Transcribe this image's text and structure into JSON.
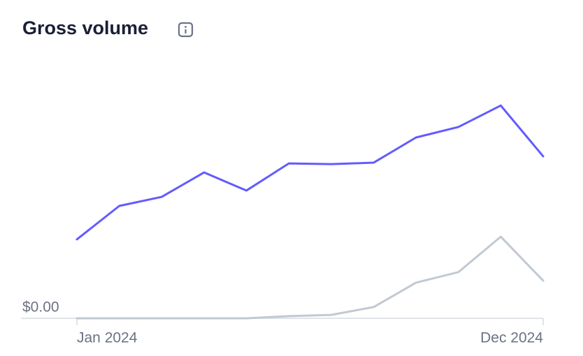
{
  "chart_data": {
    "type": "line",
    "title": "Gross volume",
    "categories": [
      "Jan 2024",
      null,
      null,
      null,
      null,
      null,
      null,
      null,
      null,
      null,
      null,
      "Dec 2024"
    ],
    "series": [
      {
        "color": "#635bff",
        "values": [
          32.3,
          46,
          49.7,
          59.7,
          52.3,
          63.4,
          63.1,
          63.7,
          74,
          78.3,
          87.1,
          66.3
        ]
      },
      {
        "color": "#c1c9d2",
        "values": [
          0,
          0,
          0,
          0,
          0,
          0.9,
          1.4,
          4.6,
          14.6,
          18.9,
          33.4,
          15.4
        ]
      }
    ],
    "ylim": [
      0,
      100
    ],
    "yticks": [
      {
        "value": 0,
        "label": "$0.00"
      }
    ]
  }
}
